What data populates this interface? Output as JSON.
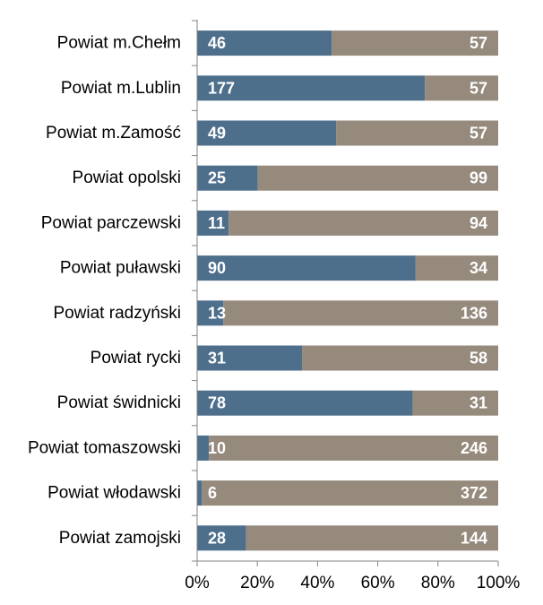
{
  "chart_data": {
    "type": "bar",
    "orientation": "horizontal",
    "stacked": "percent",
    "categories": [
      "Powiat m.Chełm",
      "Powiat m.Lublin",
      "Powiat m.Zamość",
      "Powiat opolski",
      "Powiat parczewski",
      "Powiat puławski",
      "Powiat radzyński",
      "Powiat rycki",
      "Powiat świdnicki",
      "Powiat tomaszowski",
      "Powiat włodawski",
      "Powiat zamojski"
    ],
    "series": [
      {
        "values": [
          46,
          177,
          49,
          25,
          11,
          90,
          13,
          31,
          78,
          10,
          6,
          28
        ],
        "color": "#4e6f8c"
      },
      {
        "values": [
          57,
          57,
          57,
          99,
          94,
          34,
          136,
          58,
          31,
          246,
          372,
          144
        ],
        "color": "#968a7d"
      }
    ],
    "x_ticks": [
      "0%",
      "20%",
      "40%",
      "60%",
      "80%",
      "100%"
    ],
    "xlim": [
      0,
      100
    ],
    "grid": false,
    "legend": "none",
    "title": "",
    "xlabel": "",
    "ylabel": ""
  }
}
